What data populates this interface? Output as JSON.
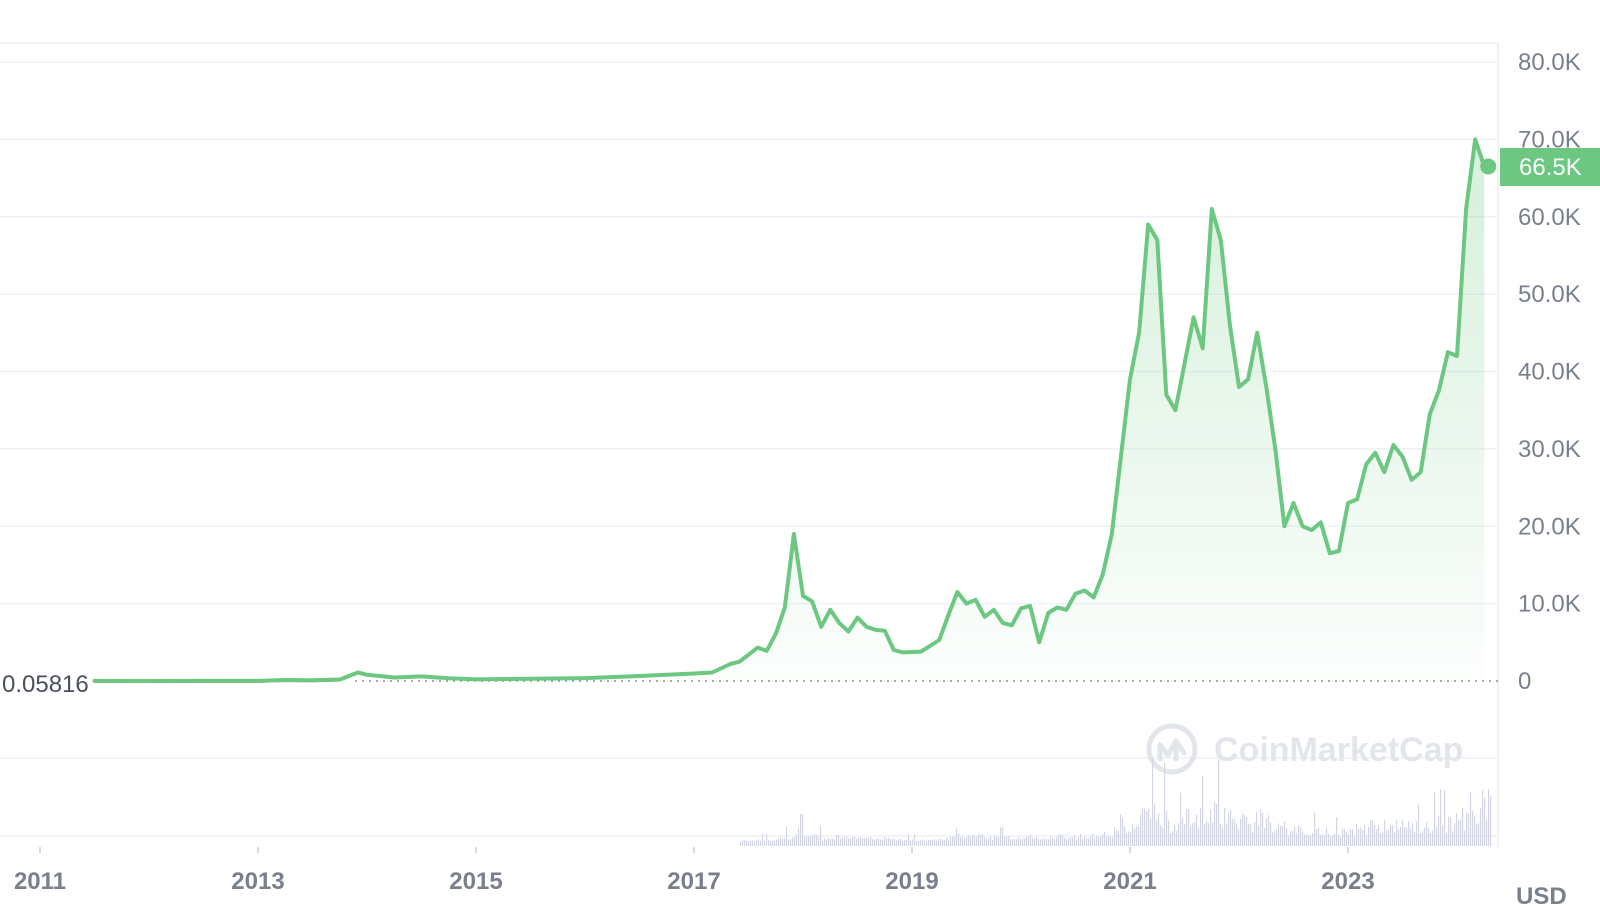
{
  "chart_data": {
    "type": "area",
    "currency_label": "USD",
    "y_ticks": [
      "0",
      "10.0K",
      "20.0K",
      "30.0K",
      "40.0K",
      "50.0K",
      "60.0K",
      "70.0K",
      "80.0K"
    ],
    "y_tick_values": [
      0,
      10000,
      20000,
      30000,
      40000,
      50000,
      60000,
      70000,
      80000
    ],
    "x_ticks": [
      "2011",
      "2013",
      "2015",
      "2017",
      "2019",
      "2021",
      "2023"
    ],
    "ylim": [
      0,
      80000
    ],
    "start_price_label": "0.05816",
    "current_price_label": "66.5K",
    "current_price": 66500,
    "grid": true,
    "watermark": "CoinMarketCap",
    "colors": {
      "line": "#6cc781",
      "fill": "#6cc781",
      "tag": "#6cc781",
      "early_line": "#d9534f",
      "volume": "#d4d7e3",
      "grid": "#eff1f4",
      "tick": "#7a7f8c"
    },
    "series": [
      {
        "x": [
          "2011-07",
          "2012-01",
          "2012-07",
          "2013-01",
          "2013-04",
          "2013-07",
          "2013-10",
          "2013-12",
          "2014-01",
          "2014-04",
          "2014-07",
          "2014-10",
          "2015-01",
          "2015-07",
          "2016-01",
          "2016-07",
          "2017-01",
          "2017-03",
          "2017-05",
          "2017-06",
          "2017-08",
          "2017-09",
          "2017-10",
          "2017-11",
          "2017-12",
          "2018-01",
          "2018-02",
          "2018-03",
          "2018-04",
          "2018-05",
          "2018-06",
          "2018-07",
          "2018-08",
          "2018-09",
          "2018-10",
          "2018-11",
          "2018-12",
          "2019-02",
          "2019-04",
          "2019-05",
          "2019-06",
          "2019-07",
          "2019-08",
          "2019-09",
          "2019-10",
          "2019-11",
          "2019-12",
          "2020-01",
          "2020-02",
          "2020-03",
          "2020-04",
          "2020-05",
          "2020-06",
          "2020-07",
          "2020-08",
          "2020-09",
          "2020-10",
          "2020-11",
          "2020-12",
          "2021-01",
          "2021-02",
          "2021-03",
          "2021-04",
          "2021-05",
          "2021-06",
          "2021-07",
          "2021-08",
          "2021-09",
          "2021-10",
          "2021-11",
          "2021-12",
          "2022-01",
          "2022-02",
          "2022-03",
          "2022-04",
          "2022-05",
          "2022-06",
          "2022-07",
          "2022-08",
          "2022-09",
          "2022-10",
          "2022-11",
          "2022-12",
          "2023-01",
          "2023-02",
          "2023-03",
          "2023-04",
          "2023-05",
          "2023-06",
          "2023-07",
          "2023-08",
          "2023-09",
          "2023-10",
          "2023-11",
          "2023-12",
          "2024-01",
          "2024-02",
          "2024-03",
          "2024-04"
        ],
        "y": [
          13,
          5,
          7,
          14,
          130,
          90,
          200,
          1100,
          800,
          450,
          600,
          350,
          210,
          280,
          370,
          650,
          970,
          1100,
          2200,
          2500,
          4300,
          3900,
          6100,
          9500,
          19000,
          11000,
          10300,
          7000,
          9200,
          7500,
          6400,
          8200,
          7000,
          6600,
          6500,
          4000,
          3700,
          3800,
          5300,
          8500,
          11500,
          10000,
          10500,
          8300,
          9200,
          7500,
          7200,
          9400,
          9700,
          5000,
          8800,
          9500,
          9200,
          11300,
          11700,
          10800,
          13800,
          19000,
          29000,
          39000,
          45000,
          59000,
          57000,
          37000,
          35000,
          41000,
          47000,
          43000,
          61000,
          57000,
          46000,
          38000,
          39000,
          45000,
          38000,
          30000,
          20000,
          23000,
          20000,
          19500,
          20500,
          16500,
          16800,
          23000,
          23500,
          28000,
          29500,
          27000,
          30500,
          29000,
          26000,
          27000,
          34500,
          37500,
          42500,
          42000,
          61000,
          70000,
          66500
        ]
      }
    ]
  }
}
